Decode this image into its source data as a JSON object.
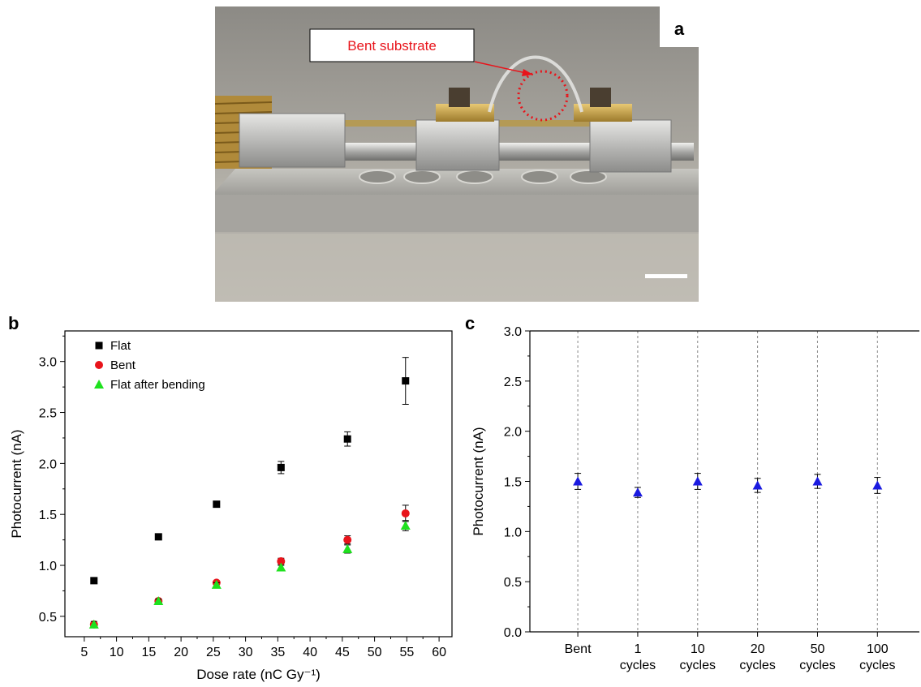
{
  "photo": {
    "panel_label": "a",
    "callout": "Bent substrate",
    "colors": {
      "callout": "#e8141b"
    }
  },
  "chart_data": [
    {
      "panel_label": "b",
      "type": "scatter",
      "xlabel": "Dose rate (nC Gy⁻¹)",
      "ylabel": "Photocurrent (nA)",
      "xlim": [
        2,
        62
      ],
      "ylim": [
        0.3,
        3.3
      ],
      "xticks": [
        5,
        10,
        15,
        20,
        25,
        30,
        35,
        40,
        45,
        50,
        55,
        60
      ],
      "yticks": [
        0.5,
        1.0,
        1.5,
        2.0,
        2.5,
        3.0
      ],
      "ytick_labels": [
        "0.5",
        "1.0",
        "1.5",
        "2.0",
        "2.5",
        "3.0"
      ],
      "grid": false,
      "legend_position": "top-left",
      "series": [
        {
          "name": "Flat",
          "marker": "square",
          "color": "#000000",
          "x": [
            6.5,
            16.5,
            25.5,
            35.5,
            45.8,
            54.8
          ],
          "y": [
            0.85,
            1.28,
            1.6,
            1.96,
            2.24,
            2.81
          ],
          "err": [
            0.0,
            0.0,
            0.0,
            0.06,
            0.07,
            0.23
          ]
        },
        {
          "name": "Bent",
          "marker": "circle",
          "color": "#e8141b",
          "x": [
            6.5,
            16.5,
            25.5,
            35.5,
            45.8,
            54.8
          ],
          "y": [
            0.42,
            0.65,
            0.83,
            1.04,
            1.25,
            1.51
          ],
          "err": [
            0.0,
            0.0,
            0.0,
            0.03,
            0.04,
            0.08
          ]
        },
        {
          "name": "Flat after bending",
          "marker": "triangle",
          "color": "#1ee11e",
          "x": [
            6.5,
            16.5,
            25.5,
            35.5,
            45.8,
            54.8
          ],
          "y": [
            0.42,
            0.65,
            0.81,
            0.98,
            1.16,
            1.39
          ],
          "err": [
            0.03,
            0.02,
            0.02,
            0.02,
            0.04,
            0.05
          ]
        }
      ]
    },
    {
      "panel_label": "c",
      "type": "scatter",
      "ylabel": "Photocurrent (nA)",
      "categories": [
        {
          "line1": "Bent",
          "line2": ""
        },
        {
          "line1": "1",
          "line2": "cycles"
        },
        {
          "line1": "10",
          "line2": "cycles"
        },
        {
          "line1": "20",
          "line2": "cycles"
        },
        {
          "line1": "50",
          "line2": "cycles"
        },
        {
          "line1": "100",
          "line2": "cycles"
        }
      ],
      "ylim": [
        0,
        3.0
      ],
      "yticks": [
        0,
        0.5,
        1.0,
        1.5,
        2.0,
        2.5,
        3.0
      ],
      "ytick_labels": [
        "0.0",
        "0.5",
        "1.0",
        "1.5",
        "2.0",
        "2.5",
        "3.0"
      ],
      "grid": "vertical dashed",
      "series": [
        {
          "marker": "triangle",
          "color": "#1a1ae0",
          "values": [
            1.5,
            1.39,
            1.5,
            1.46,
            1.5,
            1.46
          ],
          "err": [
            0.08,
            0.05,
            0.08,
            0.07,
            0.07,
            0.08
          ]
        }
      ]
    }
  ]
}
